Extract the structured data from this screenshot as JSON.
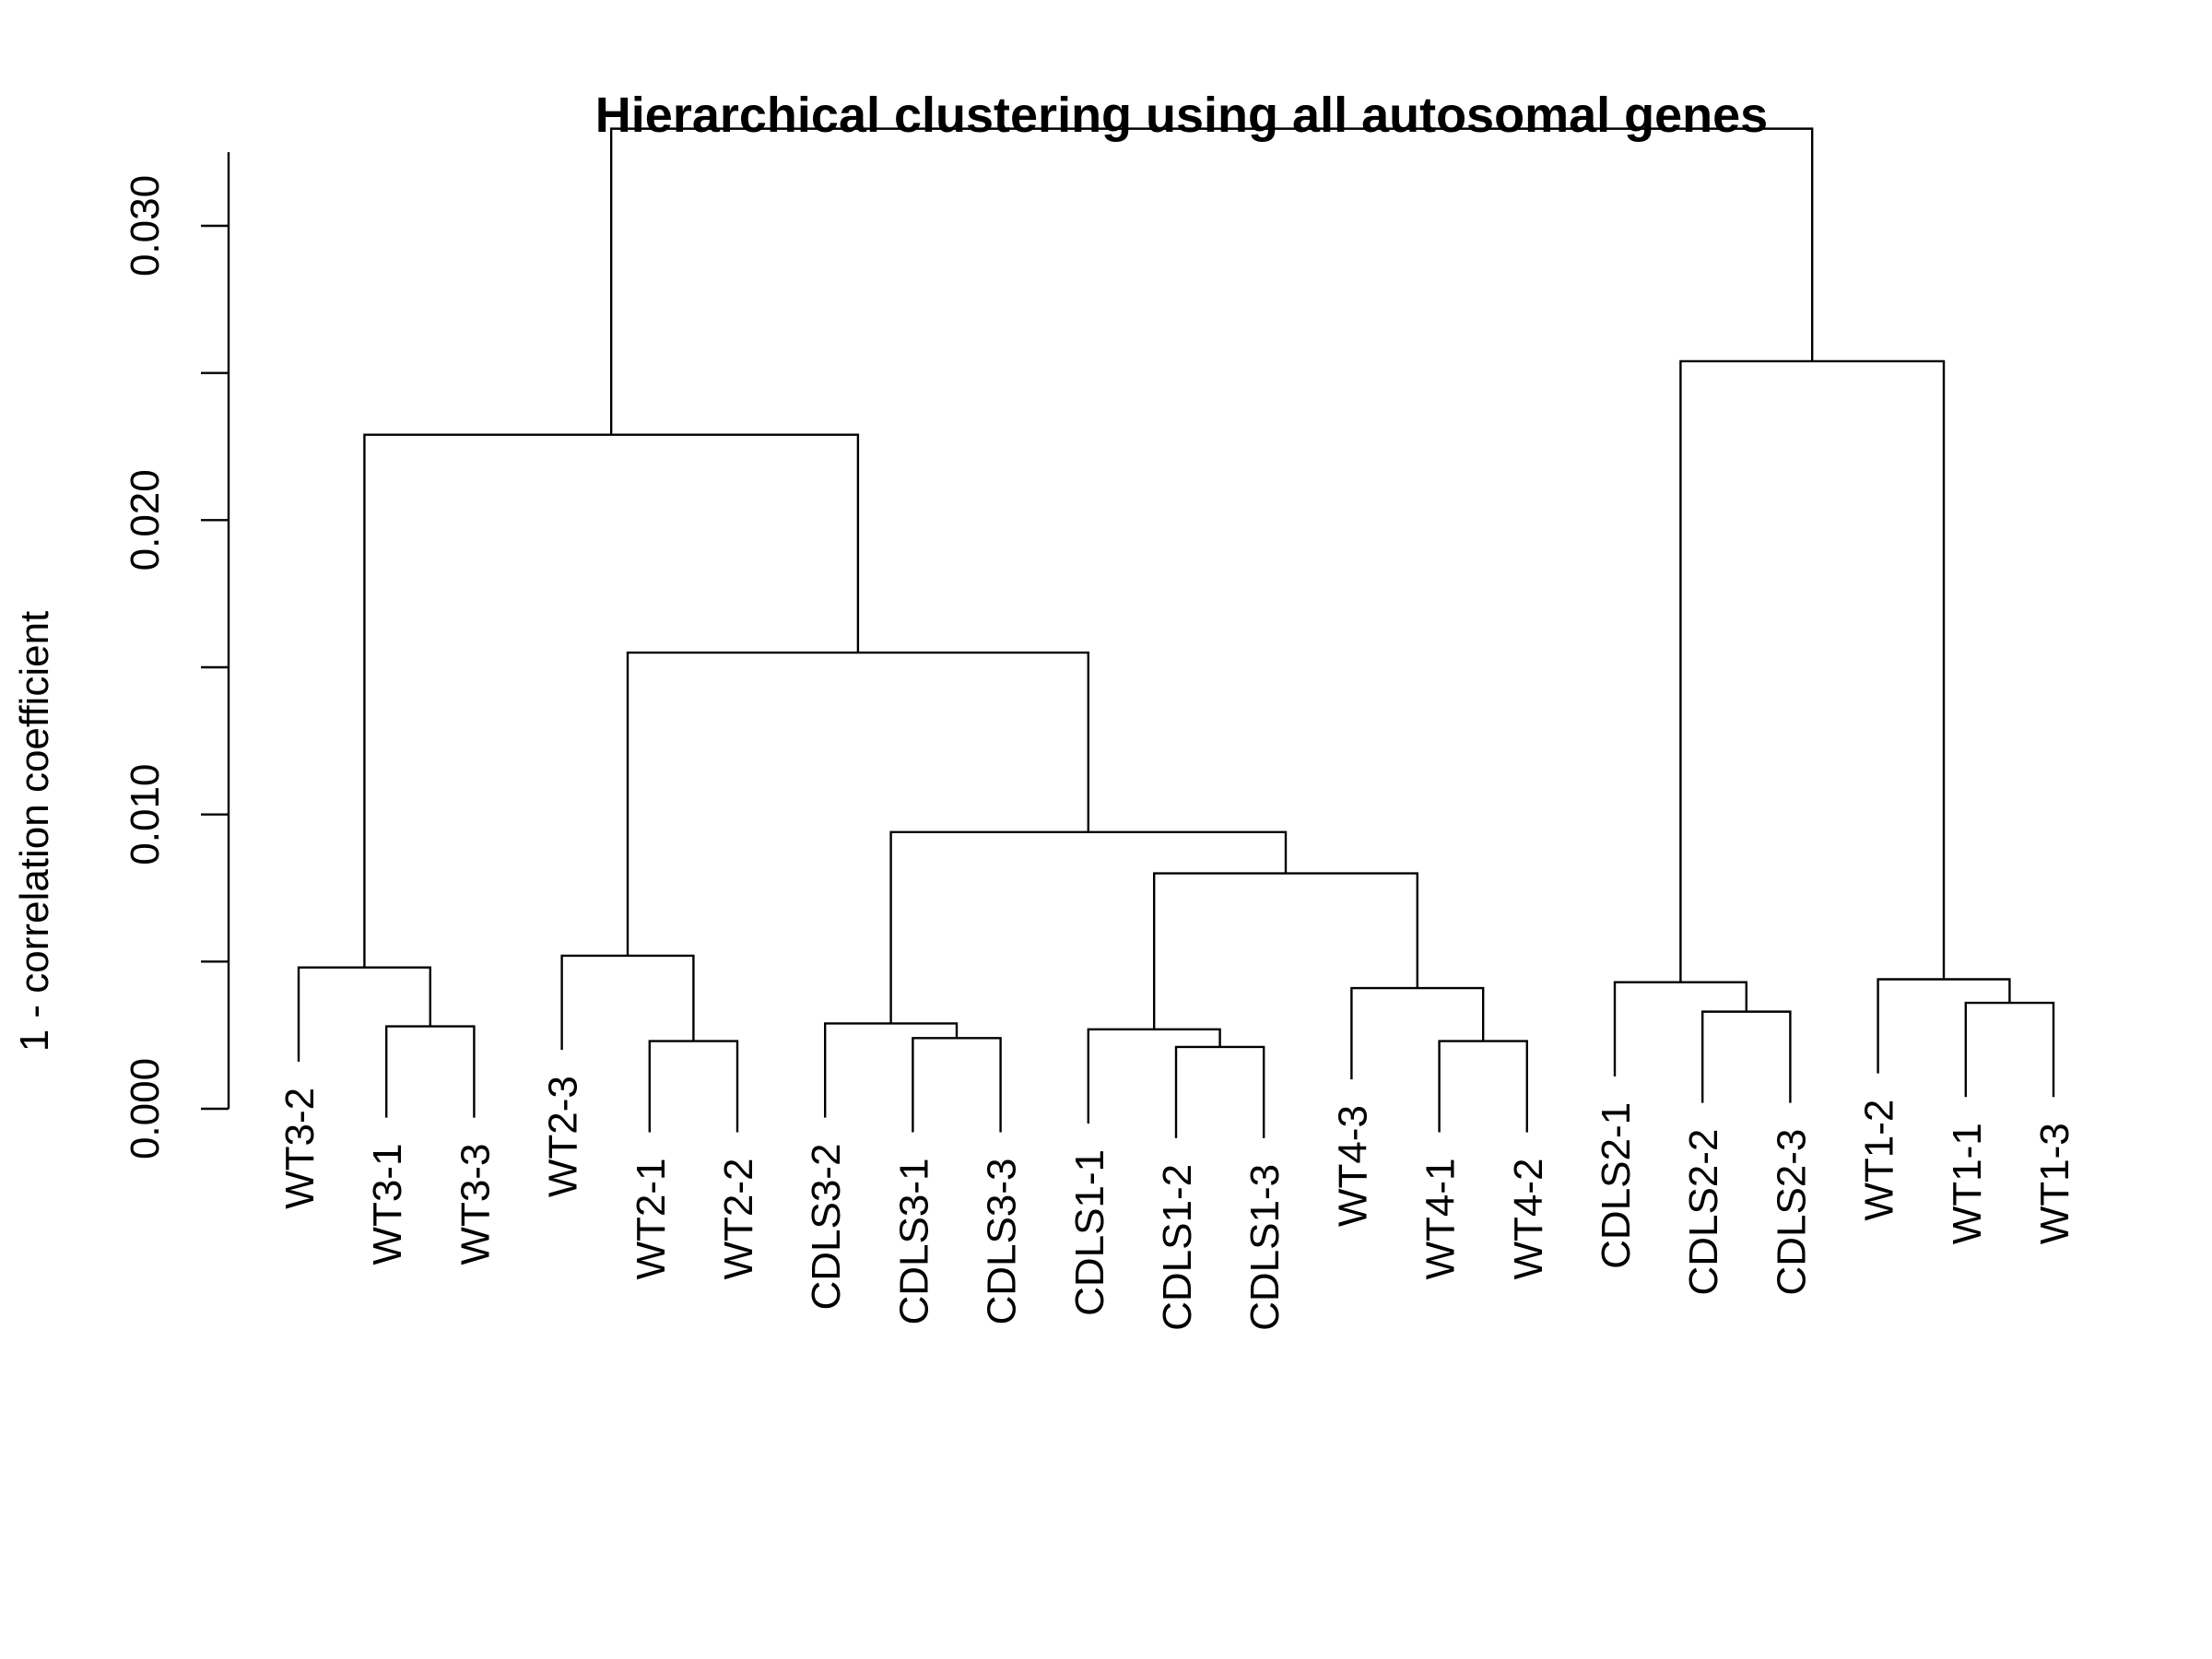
{
  "chart_data": {
    "type": "dendrogram",
    "title": "Hierarchical clustering using all autosomal genes",
    "ylabel": "1 - correlation coefficient",
    "ylim": [
      0,
      0.035
    ],
    "yticks": [
      0.0,
      0.005,
      0.01,
      0.015,
      0.02,
      0.025,
      0.03
    ],
    "ytick_labels": [
      "0.000",
      "",
      "0.010",
      "",
      "0.020",
      "",
      "0.030"
    ],
    "leaves": [
      {
        "name": "WT3-2",
        "label_height": 0.0016
      },
      {
        "name": "WT3-1",
        "label_height": -0.0003
      },
      {
        "name": "WT3-3",
        "label_height": -0.0003
      },
      {
        "name": "WT2-3",
        "label_height": 0.002
      },
      {
        "name": "WT2-1",
        "label_height": -0.0008
      },
      {
        "name": "WT2-2",
        "label_height": -0.0008
      },
      {
        "name": "CDLS3-2",
        "label_height": -0.0003
      },
      {
        "name": "CDLS3-1",
        "label_height": -0.0008
      },
      {
        "name": "CDLS3-3",
        "label_height": -0.0008
      },
      {
        "name": "CDLS1-1",
        "label_height": -0.0005
      },
      {
        "name": "CDLS1-2",
        "label_height": -0.001
      },
      {
        "name": "CDLS1-3",
        "label_height": -0.001
      },
      {
        "name": "WT4-3",
        "label_height": 0.001
      },
      {
        "name": "WT4-1",
        "label_height": -0.0008
      },
      {
        "name": "WT4-2",
        "label_height": -0.0008
      },
      {
        "name": "CDLS2-1",
        "label_height": 0.0011
      },
      {
        "name": "CDLS2-2",
        "label_height": 0.0002
      },
      {
        "name": "CDLS2-3",
        "label_height": 0.0002
      },
      {
        "name": "WT1-2",
        "label_height": 0.0012
      },
      {
        "name": "WT1-1",
        "label_height": 0.0004
      },
      {
        "name": "WT1-3",
        "label_height": 0.0004
      }
    ],
    "merges": [
      {
        "id": "m1",
        "left": "WT3-1",
        "right": "WT3-3",
        "height": 0.0028
      },
      {
        "id": "m2",
        "left": "WT3-2",
        "right": "m1",
        "height": 0.0048
      },
      {
        "id": "m3",
        "left": "WT2-1",
        "right": "WT2-2",
        "height": 0.0023
      },
      {
        "id": "m4",
        "left": "WT2-3",
        "right": "m3",
        "height": 0.0052
      },
      {
        "id": "m5",
        "left": "CDLS3-1",
        "right": "CDLS3-3",
        "height": 0.0024
      },
      {
        "id": "m6",
        "left": "CDLS3-2",
        "right": "m5",
        "height": 0.0029
      },
      {
        "id": "m7",
        "left": "CDLS1-2",
        "right": "CDLS1-3",
        "height": 0.0021
      },
      {
        "id": "m8",
        "left": "CDLS1-1",
        "right": "m7",
        "height": 0.0027
      },
      {
        "id": "m9",
        "left": "WT4-1",
        "right": "WT4-2",
        "height": 0.0023
      },
      {
        "id": "m10",
        "left": "WT4-3",
        "right": "m9",
        "height": 0.0041
      },
      {
        "id": "m11",
        "left": "m8",
        "right": "m10",
        "height": 0.008
      },
      {
        "id": "m12",
        "left": "m6",
        "right": "m11",
        "height": 0.0094
      },
      {
        "id": "m13",
        "left": "m4",
        "right": "m12",
        "height": 0.0155
      },
      {
        "id": "m14",
        "left": "m2",
        "right": "m13",
        "height": 0.0229
      },
      {
        "id": "m15",
        "left": "CDLS2-2",
        "right": "CDLS2-3",
        "height": 0.0033
      },
      {
        "id": "m16",
        "left": "CDLS2-1",
        "right": "m15",
        "height": 0.0043
      },
      {
        "id": "m17",
        "left": "WT1-1",
        "right": "WT1-3",
        "height": 0.0036
      },
      {
        "id": "m18",
        "left": "WT1-2",
        "right": "m17",
        "height": 0.0044
      },
      {
        "id": "m19",
        "left": "m16",
        "right": "m18",
        "height": 0.0254
      },
      {
        "id": "m20",
        "left": "m14",
        "right": "m19",
        "height": 0.0333
      }
    ]
  }
}
